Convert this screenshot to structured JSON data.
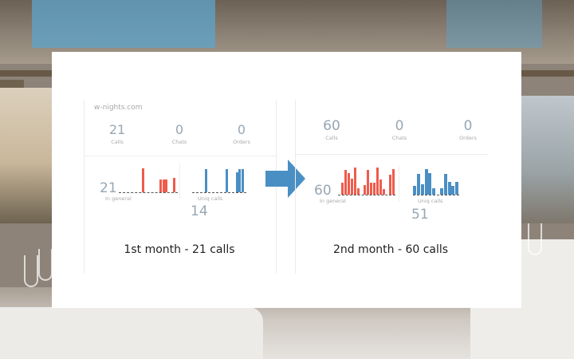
{
  "panels": [
    {
      "site": "w-nights.com",
      "stats": [
        {
          "value": "21",
          "label": "Calls"
        },
        {
          "value": "0",
          "label": "Chats"
        },
        {
          "value": "0",
          "label": "Orders"
        }
      ],
      "general": {
        "value": "21",
        "label": "In general"
      },
      "uniq": {
        "value": "14",
        "label": "Uniq calls"
      },
      "caption": "1st month - 21 calls"
    },
    {
      "stats": [
        {
          "value": "60",
          "label": "Calls"
        },
        {
          "value": "0",
          "label": "Chats"
        },
        {
          "value": "0",
          "label": "Orders"
        }
      ],
      "general": {
        "value": "60",
        "label": "In general"
      },
      "uniq": {
        "value": "51",
        "label": "Uniq calls"
      },
      "caption": "2nd month - 60 calls"
    }
  ],
  "colors": {
    "general_bars": "#ef5b4c",
    "uniq_bars": "#4a8fc4",
    "arrow": "#4a8fc4"
  },
  "chart_data": [
    {
      "type": "bar",
      "name": "In general (1st month)",
      "values": [
        0,
        0,
        0,
        0,
        0,
        0,
        0,
        0,
        0,
        1,
        0,
        0,
        0,
        0,
        0,
        0,
        0.55,
        0.55,
        0.55,
        0,
        0,
        0.6,
        0
      ]
    },
    {
      "type": "bar",
      "name": "Uniq calls (1st month)",
      "values": [
        0,
        0,
        0,
        0,
        0,
        1,
        0,
        0,
        0,
        0,
        0,
        0,
        0,
        1,
        0,
        0,
        0,
        0.85,
        1,
        1,
        0
      ]
    },
    {
      "type": "bar",
      "name": "In general (2nd month)",
      "values": [
        0,
        0.45,
        0.9,
        0.8,
        0.6,
        1,
        0.25,
        0,
        0.35,
        0.9,
        0.45,
        0.45,
        1,
        0.55,
        0.2,
        0,
        0.75,
        0.95
      ]
    },
    {
      "type": "bar",
      "name": "Uniq calls (2nd month)",
      "values": [
        0.35,
        0.8,
        0.4,
        1,
        0.85,
        0.25,
        0,
        0.25,
        0.8,
        0.5,
        0.35,
        0.5
      ]
    }
  ]
}
